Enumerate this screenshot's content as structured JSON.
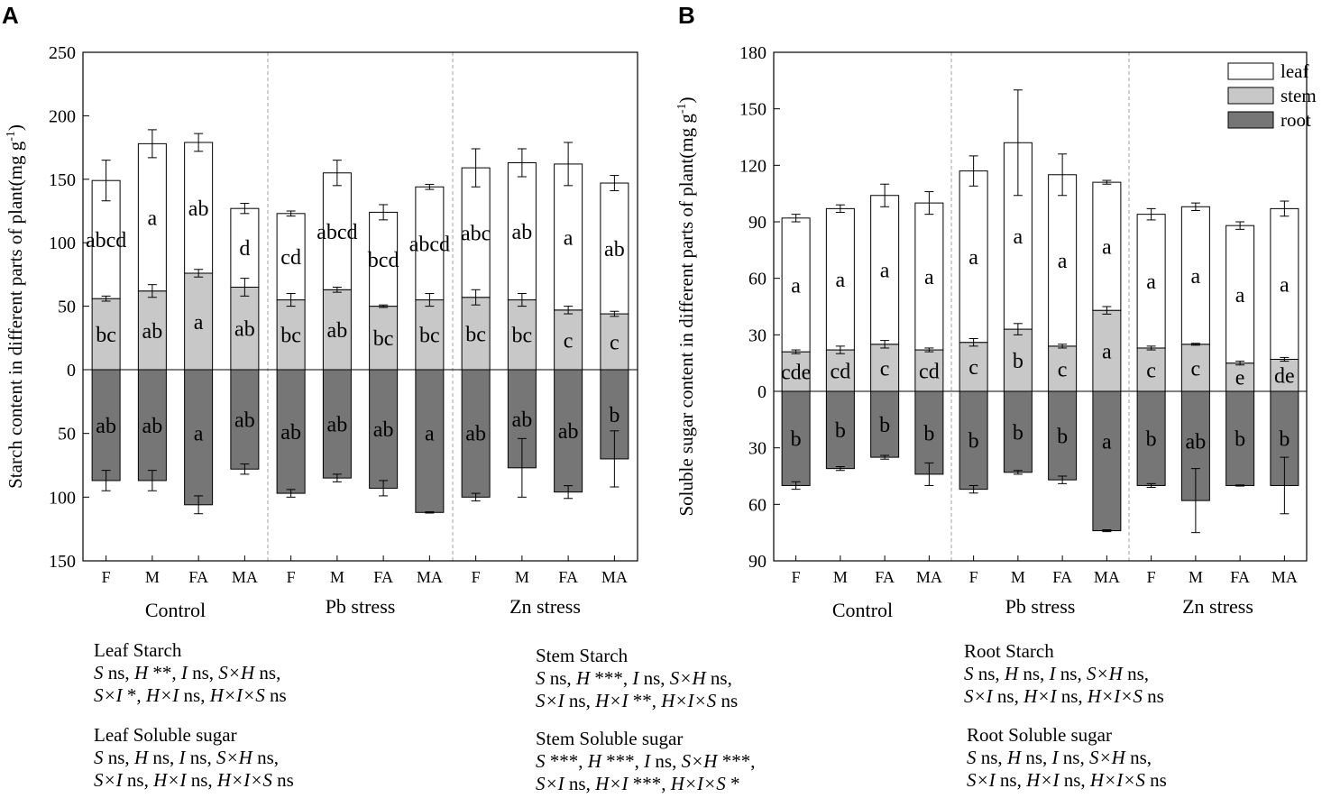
{
  "panels": [
    "A",
    "B"
  ],
  "chart_data": [
    {
      "type": "bar",
      "stacked": true,
      "panel": "A",
      "ylabel": "Starch content in different parts of plant(mg g-1)",
      "ylabel_main": "Starch content in different parts of plant(mg g",
      "ylabel_sup": "-1",
      "ylabel_end": ")",
      "ylim_up": [
        0,
        250
      ],
      "ylim_down": [
        0,
        150
      ],
      "ticks_up": [
        "250",
        "200",
        "150",
        "100",
        "50",
        "0"
      ],
      "ticks_down": [
        "50",
        "100",
        "150"
      ],
      "categories": [
        "F",
        "M",
        "FA",
        "MA",
        "F",
        "M",
        "FA",
        "MA",
        "F",
        "M",
        "FA",
        "MA"
      ],
      "groups": [
        "Control",
        "Pb stress",
        "Zn stress"
      ],
      "series": [
        {
          "name": "stem",
          "values": [
            56,
            62,
            76,
            65,
            55,
            63,
            50,
            55,
            57,
            55,
            47,
            44
          ],
          "errors": [
            2,
            5,
            3,
            7,
            5,
            2,
            1,
            5,
            6,
            5,
            3,
            2
          ],
          "letters": [
            "bc",
            "ab",
            "a",
            "ab",
            "bc",
            "ab",
            "bc",
            "bc",
            "bc",
            "bc",
            "c",
            "c"
          ]
        },
        {
          "name": "leaf",
          "values": [
            93,
            116,
            103,
            62,
            68,
            92,
            74,
            89,
            102,
            108,
            115,
            103
          ],
          "errors": [
            16,
            11,
            7,
            4,
            2,
            10,
            6,
            2,
            15,
            11,
            17,
            6
          ],
          "letters": [
            "abcd",
            "a",
            "ab",
            "d",
            "cd",
            "abcd",
            "bcd",
            "abcd",
            "abc",
            "ab",
            "a",
            "ab"
          ]
        },
        {
          "name": "root",
          "values": [
            87,
            87,
            106,
            78,
            97,
            85,
            93,
            112,
            100,
            77,
            96,
            70
          ],
          "errors": [
            8,
            8,
            7,
            4,
            3,
            3,
            6,
            0.5,
            3,
            23,
            5,
            22
          ],
          "letters": [
            "ab",
            "ab",
            "a",
            "ab",
            "ab",
            "ab",
            "ab",
            "a",
            "ab",
            "ab",
            "ab",
            "b"
          ]
        }
      ]
    },
    {
      "type": "bar",
      "stacked": true,
      "panel": "B",
      "ylabel": "Soluble sugar content in different parts of plant(mg g-1)",
      "ylabel_main": "Soluble sugar content in different parts of plant(mg g",
      "ylabel_sup": "-1",
      "ylabel_end": ")",
      "ylim_up": [
        0,
        180
      ],
      "ylim_down": [
        0,
        90
      ],
      "ticks_up": [
        "180",
        "150",
        "120",
        "90",
        "60",
        "30",
        "0"
      ],
      "ticks_down": [
        "30",
        "60",
        "90"
      ],
      "categories": [
        "F",
        "M",
        "FA",
        "MA",
        "F",
        "M",
        "FA",
        "MA",
        "F",
        "M",
        "FA",
        "MA"
      ],
      "groups": [
        "Control",
        "Pb stress",
        "Zn stress"
      ],
      "legend": [
        "leaf",
        "stem",
        "root"
      ],
      "legend_position": "top-right",
      "series": [
        {
          "name": "stem",
          "values": [
            21,
            22,
            25,
            22,
            26,
            33,
            24,
            43,
            23,
            25,
            15,
            17
          ],
          "errors": [
            1,
            2,
            2,
            1,
            2,
            3,
            1,
            2,
            1,
            0.5,
            1,
            1
          ],
          "letters": [
            "cde",
            "cd",
            "c",
            "cd",
            "c",
            "b",
            "c",
            "a",
            "c",
            "c",
            "e",
            "de"
          ]
        },
        {
          "name": "leaf",
          "values": [
            71,
            75,
            79,
            78,
            91,
            99,
            91,
            68,
            71,
            73,
            73,
            80
          ],
          "errors": [
            2,
            2,
            6,
            6,
            8,
            28,
            11,
            1,
            3,
            2,
            2,
            4
          ],
          "letters": [
            "a",
            "a",
            "a",
            "a",
            "a",
            "a",
            "a",
            "a",
            "a",
            "a",
            "a",
            "a"
          ]
        },
        {
          "name": "root",
          "values": [
            50,
            41,
            35,
            44,
            52,
            43,
            47,
            74,
            50,
            58,
            50,
            50
          ],
          "errors": [
            2,
            1,
            1,
            6,
            2,
            1,
            2,
            0.5,
            1,
            17,
            0.3,
            15
          ],
          "letters": [
            "b",
            "b",
            "b",
            "b",
            "b",
            "b",
            "b",
            "a",
            "b",
            "ab",
            "b",
            "b"
          ]
        }
      ]
    }
  ],
  "stats": [
    {
      "title": "Leaf Starch",
      "lines": [
        [
          [
            "S",
            "i"
          ],
          [
            " ns, ",
            "r"
          ],
          [
            "H",
            "i"
          ],
          [
            " **, ",
            "r"
          ],
          [
            "I",
            "i"
          ],
          [
            " ns, ",
            "r"
          ],
          [
            "S×H",
            "i"
          ],
          [
            " ns,",
            "r"
          ]
        ],
        [
          [
            "S×I",
            "i"
          ],
          [
            " *, ",
            "r"
          ],
          [
            "H×I",
            "i"
          ],
          [
            " ns, ",
            "r"
          ],
          [
            "H×I×S",
            "i"
          ],
          [
            " ns",
            "r"
          ]
        ]
      ]
    },
    {
      "title": "Leaf Soluble sugar",
      "lines": [
        [
          [
            "S",
            "i"
          ],
          [
            " ns, ",
            "r"
          ],
          [
            "H",
            "i"
          ],
          [
            " ns, ",
            "r"
          ],
          [
            "I",
            "i"
          ],
          [
            " ns, ",
            "r"
          ],
          [
            "S×H",
            "i"
          ],
          [
            " ns,",
            "r"
          ]
        ],
        [
          [
            "S×I",
            "i"
          ],
          [
            " ns, ",
            "r"
          ],
          [
            "H×I",
            "i"
          ],
          [
            " ns, ",
            "r"
          ],
          [
            "H×I×S",
            "i"
          ],
          [
            " ns",
            "r"
          ]
        ]
      ]
    },
    {
      "title": "Stem Starch",
      "lines": [
        [
          [
            "S",
            "i"
          ],
          [
            " ns, ",
            "r"
          ],
          [
            "H",
            "i"
          ],
          [
            " ***, ",
            "r"
          ],
          [
            "I",
            "i"
          ],
          [
            " ns, ",
            "r"
          ],
          [
            "S×H",
            "i"
          ],
          [
            " ns,",
            "r"
          ]
        ],
        [
          [
            "S×I",
            "i"
          ],
          [
            " ns, ",
            "r"
          ],
          [
            "H×I",
            "i"
          ],
          [
            " **, ",
            "r"
          ],
          [
            "H×I×S",
            "i"
          ],
          [
            " ns",
            "r"
          ]
        ]
      ]
    },
    {
      "title": "Stem Soluble sugar",
      "lines": [
        [
          [
            "S",
            "i"
          ],
          [
            " ***, ",
            "r"
          ],
          [
            "H",
            "i"
          ],
          [
            " ***, ",
            "r"
          ],
          [
            "I",
            "i"
          ],
          [
            " ns, ",
            "r"
          ],
          [
            "S×H",
            "i"
          ],
          [
            " ***,",
            "r"
          ]
        ],
        [
          [
            "S×I",
            "i"
          ],
          [
            " ns, ",
            "r"
          ],
          [
            "H×I",
            "i"
          ],
          [
            " ***, ",
            "r"
          ],
          [
            "H×I×S",
            "i"
          ],
          [
            " *",
            "r"
          ]
        ]
      ]
    },
    {
      "title": "Root Starch",
      "lines": [
        [
          [
            "S",
            "i"
          ],
          [
            " ns, ",
            "r"
          ],
          [
            "H",
            "i"
          ],
          [
            " ns, ",
            "r"
          ],
          [
            "I",
            "i"
          ],
          [
            " ns, ",
            "r"
          ],
          [
            "S×H",
            "i"
          ],
          [
            " ns,",
            "r"
          ]
        ],
        [
          [
            "S×I",
            "i"
          ],
          [
            " ns, ",
            "r"
          ],
          [
            "H×I",
            "i"
          ],
          [
            " ns, ",
            "r"
          ],
          [
            "H×I×S",
            "i"
          ],
          [
            " ns",
            "r"
          ]
        ]
      ]
    },
    {
      "title": "Root Soluble sugar",
      "lines": [
        [
          [
            "S",
            "i"
          ],
          [
            " ns, ",
            "r"
          ],
          [
            "H",
            "i"
          ],
          [
            " ns, ",
            "r"
          ],
          [
            "I",
            "i"
          ],
          [
            " ns, ",
            "r"
          ],
          [
            "S×H",
            "i"
          ],
          [
            " ns,",
            "r"
          ]
        ],
        [
          [
            "S×I",
            "i"
          ],
          [
            " ns, ",
            "r"
          ],
          [
            "H×I",
            "i"
          ],
          [
            " ns, ",
            "r"
          ],
          [
            "H×I×S",
            "i"
          ],
          [
            " ns",
            "r"
          ]
        ]
      ]
    }
  ],
  "colors": {
    "leaf": "#ffffff",
    "stem": "#c8c8c8",
    "root": "#767676",
    "axis": "#000000",
    "divider": "#a0a0a0"
  }
}
